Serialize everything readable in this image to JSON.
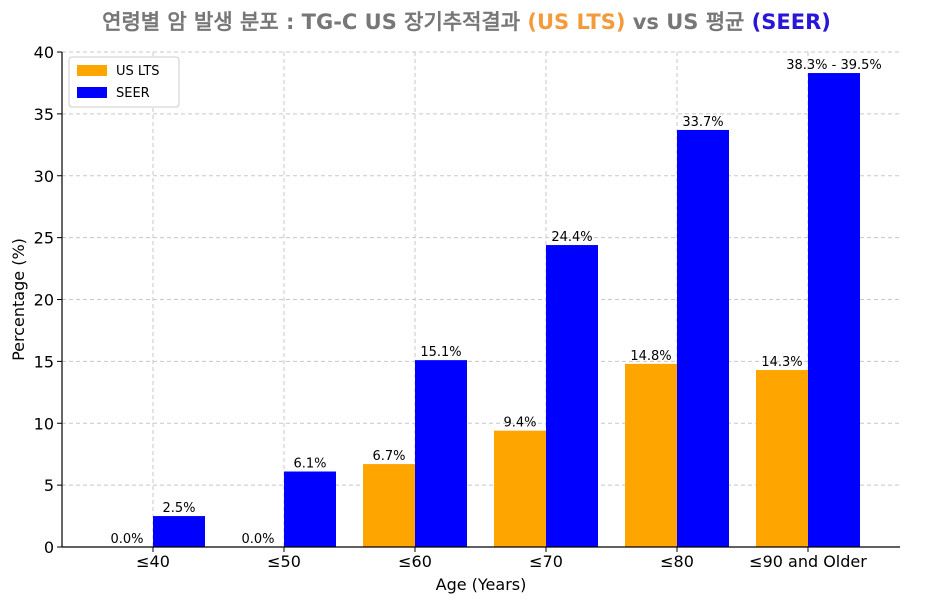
{
  "title": {
    "prefix": "연령별 암 발생 분포 : TG-C US 장기추적결과 ",
    "lts": "(US LTS)",
    "middle": " vs US 평균 ",
    "seer": "(SEER)"
  },
  "chart_data": {
    "type": "bar",
    "title": "연령별 암 발생 분포 : TG-C US 장기추적결과 (US LTS) vs US 평균 (SEER)",
    "xlabel": "Age (Years)",
    "ylabel": "Percentage (%)",
    "ylim": [
      0,
      40
    ],
    "yticks": [
      0,
      5,
      10,
      15,
      20,
      25,
      30,
      35,
      40
    ],
    "grid": true,
    "legend_position": "top-left",
    "categories": [
      "≤40",
      "≤50",
      "≤60",
      "≤70",
      "≤80",
      "≤90 and Older"
    ],
    "series": [
      {
        "name": "US LTS",
        "color": "#ffa500",
        "values": [
          0.0,
          0.0,
          6.7,
          9.4,
          14.8,
          14.3
        ],
        "labels": [
          "0.0%",
          "0.0%",
          "6.7%",
          "9.4%",
          "14.8%",
          "14.3%"
        ]
      },
      {
        "name": "SEER",
        "color": "#0000ff",
        "values": [
          2.5,
          6.1,
          15.1,
          24.4,
          33.7,
          38.3
        ],
        "labels": [
          "2.5%",
          "6.1%",
          "15.1%",
          "24.4%",
          "33.7%",
          "38.3% - 39.5%"
        ]
      }
    ]
  }
}
